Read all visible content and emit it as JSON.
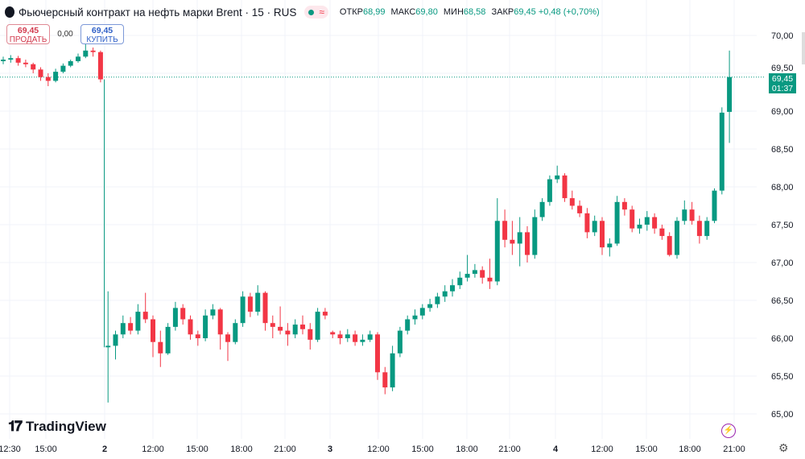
{
  "header": {
    "title": "Фьючерсный контракт на нефть марки Brent · 15 · RUS",
    "badge_icon": "approx-wave-icon",
    "ohlc": [
      {
        "label": "ОТКР",
        "value": "68,99"
      },
      {
        "label": "МАКС",
        "value": "69,80"
      },
      {
        "label": "МИН",
        "value": "68,58"
      },
      {
        "label": "ЗАКР",
        "value": "69,45"
      }
    ],
    "change": "+0,48 (+0,70%)"
  },
  "trade": {
    "sell_price": "69,45",
    "sell_label": "ПРОДАТЬ",
    "spread": "0,00",
    "buy_price": "69,45",
    "buy_label": "КУПИТЬ"
  },
  "price_label": {
    "price": "69,45",
    "countdown": "01:37"
  },
  "brand": "TradingView",
  "colors": {
    "up": "#089981",
    "down": "#f23645",
    "grid": "#f0f3fa"
  },
  "chart_data": {
    "type": "candlestick",
    "title": "Фьючерсный контракт на нефть марки Brent · 15 · RUS",
    "interval": "15",
    "ylim": [
      65.0,
      70.0
    ],
    "y_ticks": [
      "70,00",
      "69,50",
      "69,00",
      "68,50",
      "68,00",
      "67,50",
      "67,00",
      "66,50",
      "66,00",
      "65,50",
      "65,00"
    ],
    "x_ticks": [
      "12:30",
      "15:00",
      "2",
      "12:00",
      "15:00",
      "18:00",
      "21:00",
      "3",
      "12:00",
      "15:00",
      "18:00",
      "21:00",
      "4",
      "12:00",
      "15:00",
      "18:00",
      "21:00"
    ],
    "last_price": 69.45,
    "grid": true,
    "candles": [
      [
        69.66,
        69.72,
        69.62,
        69.68
      ],
      [
        69.68,
        69.74,
        69.64,
        69.7
      ],
      [
        69.7,
        69.73,
        69.6,
        69.64
      ],
      [
        69.64,
        69.68,
        69.58,
        69.62
      ],
      [
        69.62,
        69.64,
        69.5,
        69.55
      ],
      [
        69.55,
        69.58,
        69.4,
        69.45
      ],
      [
        69.45,
        69.5,
        69.33,
        69.4
      ],
      [
        69.4,
        69.56,
        69.38,
        69.52
      ],
      [
        69.52,
        69.63,
        69.5,
        69.6
      ],
      [
        69.6,
        69.68,
        69.58,
        69.66
      ],
      [
        69.66,
        69.76,
        69.64,
        69.72
      ],
      [
        69.72,
        69.9,
        69.7,
        69.8
      ],
      [
        69.8,
        69.84,
        69.72,
        69.78
      ],
      [
        69.78,
        69.8,
        69.38,
        69.42
      ],
      [
        65.88,
        66.62,
        65.15,
        65.9
      ],
      [
        65.9,
        66.1,
        65.72,
        66.05
      ],
      [
        66.05,
        66.3,
        66.0,
        66.2
      ],
      [
        66.2,
        66.28,
        66.05,
        66.1
      ],
      [
        66.1,
        66.45,
        66.05,
        66.35
      ],
      [
        66.35,
        66.6,
        66.2,
        66.25
      ],
      [
        66.25,
        66.3,
        65.75,
        65.95
      ],
      [
        65.95,
        66.1,
        65.62,
        65.8
      ],
      [
        65.8,
        66.2,
        65.78,
        66.15
      ],
      [
        66.15,
        66.48,
        66.1,
        66.4
      ],
      [
        66.4,
        66.45,
        66.18,
        66.25
      ],
      [
        66.25,
        66.3,
        65.98,
        66.05
      ],
      [
        66.05,
        66.1,
        65.9,
        66.0
      ],
      [
        66.0,
        66.38,
        65.96,
        66.3
      ],
      [
        66.3,
        66.45,
        66.25,
        66.38
      ],
      [
        66.38,
        66.4,
        65.85,
        66.05
      ],
      [
        66.05,
        66.08,
        65.7,
        65.95
      ],
      [
        65.95,
        66.25,
        65.92,
        66.2
      ],
      [
        66.2,
        66.62,
        66.15,
        66.55
      ],
      [
        66.55,
        66.6,
        66.28,
        66.35
      ],
      [
        66.35,
        66.7,
        66.3,
        66.6
      ],
      [
        66.6,
        66.62,
        66.1,
        66.2
      ],
      [
        66.2,
        66.3,
        66.0,
        66.15
      ],
      [
        66.15,
        66.42,
        66.05,
        66.1
      ],
      [
        66.1,
        66.2,
        65.9,
        66.05
      ],
      [
        66.05,
        66.25,
        66.0,
        66.18
      ],
      [
        66.18,
        66.3,
        66.05,
        66.12
      ],
      [
        66.12,
        66.2,
        65.85,
        65.98
      ],
      [
        65.98,
        66.4,
        65.95,
        66.35
      ],
      [
        66.35,
        66.4,
        66.25,
        66.3
      ],
      [
        66.08,
        66.1,
        66.0,
        66.05
      ],
      [
        66.05,
        66.1,
        65.92,
        66.0
      ],
      [
        66.0,
        66.12,
        65.95,
        66.05
      ],
      [
        66.05,
        66.1,
        65.9,
        65.95
      ],
      [
        65.95,
        66.05,
        65.9,
        65.98
      ],
      [
        65.98,
        66.1,
        65.95,
        66.05
      ],
      [
        66.05,
        66.08,
        65.45,
        65.55
      ],
      [
        65.55,
        65.62,
        65.26,
        65.35
      ],
      [
        65.35,
        65.9,
        65.3,
        65.8
      ],
      [
        65.8,
        66.15,
        65.75,
        66.1
      ],
      [
        66.1,
        66.3,
        66.05,
        66.25
      ],
      [
        66.25,
        66.38,
        66.18,
        66.3
      ],
      [
        66.3,
        66.45,
        66.25,
        66.4
      ],
      [
        66.4,
        66.52,
        66.35,
        66.45
      ],
      [
        66.45,
        66.6,
        66.4,
        66.55
      ],
      [
        66.55,
        66.7,
        66.48,
        66.62
      ],
      [
        66.62,
        66.78,
        66.55,
        66.7
      ],
      [
        66.7,
        66.88,
        66.65,
        66.8
      ],
      [
        66.8,
        67.1,
        66.75,
        66.85
      ],
      [
        66.85,
        66.98,
        66.8,
        66.9
      ],
      [
        66.9,
        66.95,
        66.72,
        66.8
      ],
      [
        66.8,
        67.05,
        66.65,
        66.75
      ],
      [
        66.75,
        67.85,
        66.7,
        67.55
      ],
      [
        67.55,
        67.7,
        67.2,
        67.3
      ],
      [
        67.3,
        67.55,
        67.1,
        67.25
      ],
      [
        67.25,
        67.6,
        66.95,
        67.4
      ],
      [
        67.4,
        67.48,
        67.0,
        67.1
      ],
      [
        67.1,
        67.7,
        67.05,
        67.6
      ],
      [
        67.6,
        67.85,
        67.55,
        67.8
      ],
      [
        67.8,
        68.15,
        67.75,
        68.1
      ],
      [
        68.1,
        68.28,
        68.05,
        68.15
      ],
      [
        68.15,
        68.18,
        67.8,
        67.85
      ],
      [
        67.85,
        67.95,
        67.7,
        67.75
      ],
      [
        67.75,
        67.82,
        67.6,
        67.65
      ],
      [
        67.65,
        67.72,
        67.32,
        67.4
      ],
      [
        67.4,
        67.62,
        67.35,
        67.55
      ],
      [
        67.55,
        67.6,
        67.1,
        67.2
      ],
      [
        67.2,
        67.32,
        67.08,
        67.25
      ],
      [
        67.25,
        67.88,
        67.22,
        67.8
      ],
      [
        67.8,
        67.85,
        67.62,
        67.7
      ],
      [
        67.7,
        67.75,
        67.4,
        67.45
      ],
      [
        67.45,
        67.58,
        67.38,
        67.5
      ],
      [
        67.5,
        67.68,
        67.42,
        67.6
      ],
      [
        67.6,
        67.65,
        67.38,
        67.45
      ],
      [
        67.45,
        67.5,
        67.3,
        67.35
      ],
      [
        67.35,
        67.4,
        67.08,
        67.1
      ],
      [
        67.1,
        67.6,
        67.05,
        67.55
      ],
      [
        67.55,
        67.82,
        67.5,
        67.7
      ],
      [
        67.7,
        67.8,
        67.5,
        67.55
      ],
      [
        67.55,
        67.62,
        67.25,
        67.35
      ],
      [
        67.35,
        67.6,
        67.3,
        67.55
      ],
      [
        67.55,
        67.98,
        67.52,
        67.95
      ],
      [
        67.95,
        69.05,
        67.9,
        68.98
      ],
      [
        68.99,
        69.8,
        68.58,
        69.45
      ]
    ]
  }
}
